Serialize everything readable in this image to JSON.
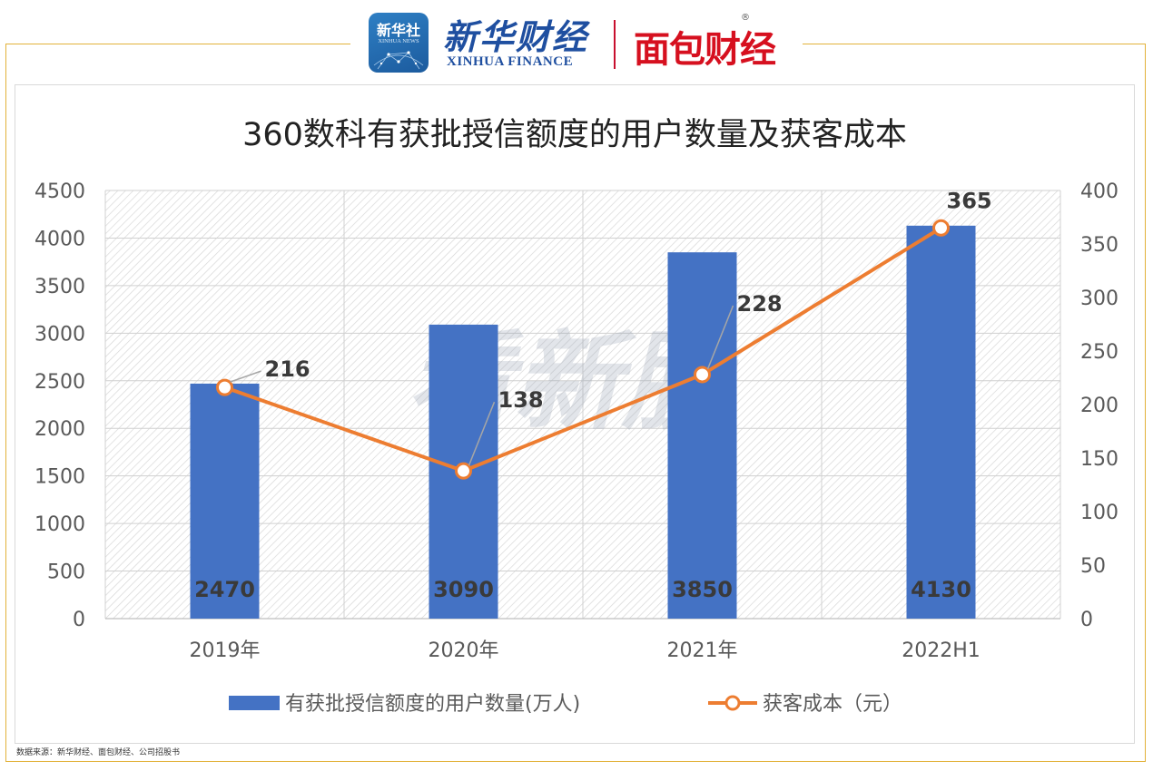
{
  "branding": {
    "xinhua_badge_name": "新华社",
    "xinhua_badge_sub": "XINHUA NEWS",
    "xinhua_finance_cn": "新华财经",
    "xinhua_finance_en": "XINHUA FINANCE",
    "mianbao_logo": "面包财经",
    "registered_mark": "®",
    "watermark": "看新股"
  },
  "source_note": "数据来源：新华财经、面包财经、公司招股书",
  "chart_data": {
    "type": "bar",
    "title": "360数科有获批授信额度的用户数量及获客成本",
    "categories": [
      "2019年",
      "2020年",
      "2021年",
      "2022H1"
    ],
    "series": [
      {
        "name": "有获批授信额度的用户数量(万人)",
        "type": "bar",
        "axis": "left",
        "values": [
          2470,
          3090,
          3850,
          4130
        ],
        "labels": [
          "2470",
          "3090",
          "3850",
          "4130"
        ],
        "color": "#4472c4"
      },
      {
        "name": "获客成本（元）",
        "type": "line",
        "axis": "right",
        "values": [
          216,
          138,
          228,
          365
        ],
        "labels": [
          "216",
          "138",
          "228",
          "365"
        ],
        "color": "#ed7d31"
      }
    ],
    "y_left": {
      "min": 0,
      "max": 4500,
      "ticks": [
        "0",
        "500",
        "1000",
        "1500",
        "2000",
        "2500",
        "3000",
        "3500",
        "4000",
        "4500"
      ]
    },
    "y_right": {
      "min": 0,
      "max": 400,
      "ticks": [
        "0",
        "50",
        "100",
        "150",
        "200",
        "250",
        "300",
        "350",
        "400"
      ]
    },
    "grid": true,
    "legend_position": "bottom",
    "xlabel": "",
    "ylabel": ""
  }
}
